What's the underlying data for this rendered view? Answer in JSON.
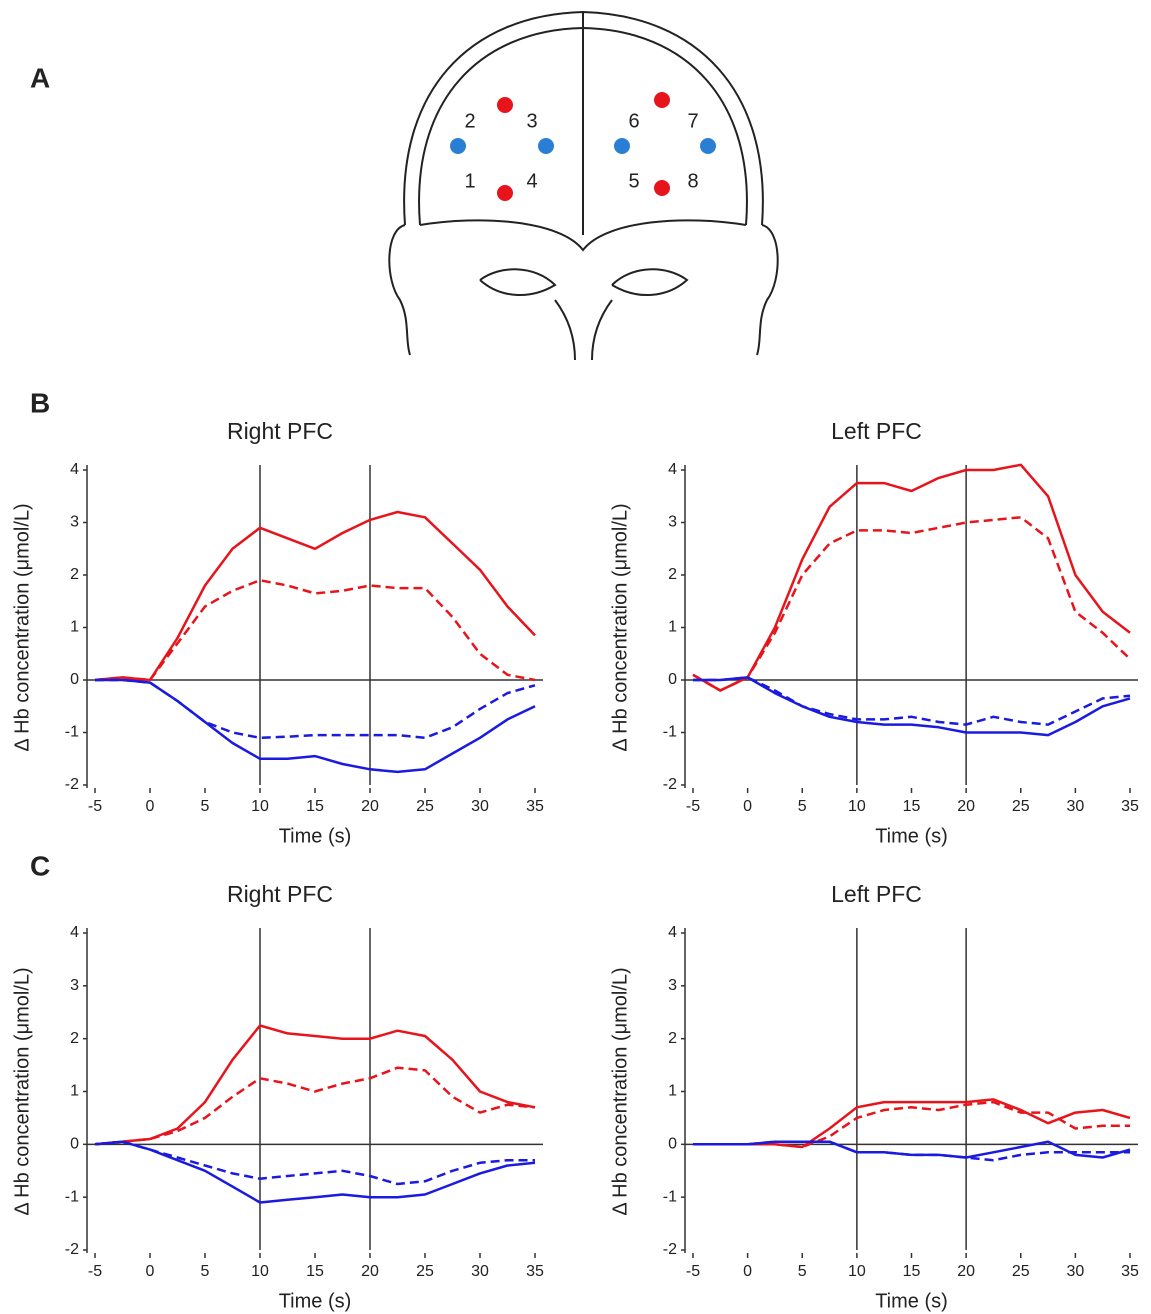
{
  "panels": [
    "A",
    "B",
    "C"
  ],
  "head": {
    "channels": [
      "1",
      "2",
      "3",
      "4",
      "5",
      "6",
      "7",
      "8"
    ]
  },
  "chart_data": [
    {
      "type": "line",
      "title": "Right PFC",
      "xlabel": "Time (s)",
      "ylabel": "Δ Hb concentration (μmol/L)",
      "xlim": [
        -5,
        35
      ],
      "ylim": [
        -2,
        4
      ],
      "xticks": [
        -5,
        0,
        5,
        10,
        15,
        20,
        25,
        30,
        35
      ],
      "yticks": [
        -2,
        -1,
        0,
        1,
        2,
        3,
        4
      ],
      "vlines": [
        10,
        20
      ],
      "hlines": [
        0
      ],
      "x": [
        -5,
        -2.5,
        0,
        2.5,
        5,
        7.5,
        10,
        12.5,
        15,
        17.5,
        20,
        22.5,
        25,
        27.5,
        30,
        32.5,
        35
      ],
      "series": [
        {
          "color": "#e8141b",
          "linestyle": "solid",
          "values": [
            0,
            0.05,
            0,
            0.8,
            1.8,
            2.5,
            2.9,
            2.7,
            2.5,
            2.8,
            3.05,
            3.2,
            3.1,
            2.6,
            2.1,
            1.4,
            0.85
          ]
        },
        {
          "color": "#e8141b",
          "linestyle": "dashed",
          "values": [
            0,
            0.05,
            0,
            0.7,
            1.4,
            1.7,
            1.9,
            1.8,
            1.65,
            1.7,
            1.8,
            1.75,
            1.75,
            1.2,
            0.5,
            0.1,
            0
          ]
        },
        {
          "color": "#1a1ae0",
          "linestyle": "solid",
          "values": [
            0,
            0,
            -0.05,
            -0.4,
            -0.8,
            -1.2,
            -1.5,
            -1.5,
            -1.45,
            -1.6,
            -1.7,
            -1.75,
            -1.7,
            -1.4,
            -1.1,
            -0.75,
            -0.5
          ]
        },
        {
          "color": "#1a1ae0",
          "linestyle": "dashed",
          "values": [
            0,
            0,
            -0.05,
            -0.4,
            -0.8,
            -1,
            -1.1,
            -1.08,
            -1.05,
            -1.05,
            -1.05,
            -1.05,
            -1.1,
            -0.9,
            -0.55,
            -0.25,
            -0.1
          ]
        }
      ]
    },
    {
      "type": "line",
      "title": "Left PFC",
      "xlabel": "Time (s)",
      "ylabel": "Δ Hb concentration (μmol/L)",
      "xlim": [
        -5,
        35
      ],
      "ylim": [
        -2,
        4
      ],
      "xticks": [
        -5,
        0,
        5,
        10,
        15,
        20,
        25,
        30,
        35
      ],
      "yticks": [
        -2,
        -1,
        0,
        1,
        2,
        3,
        4
      ],
      "vlines": [
        10,
        20
      ],
      "hlines": [
        0
      ],
      "x": [
        -5,
        -2.5,
        0,
        2.5,
        5,
        7.5,
        10,
        12.5,
        15,
        17.5,
        20,
        22.5,
        25,
        27.5,
        30,
        32.5,
        35
      ],
      "series": [
        {
          "color": "#e8141b",
          "linestyle": "solid",
          "values": [
            0.1,
            -0.2,
            0.05,
            1,
            2.3,
            3.3,
            3.75,
            3.75,
            3.6,
            3.85,
            4,
            4,
            4.1,
            3.5,
            2,
            1.3,
            0.9
          ]
        },
        {
          "color": "#e8141b",
          "linestyle": "dashed",
          "values": [
            0.1,
            -0.2,
            0.05,
            0.9,
            2,
            2.6,
            2.85,
            2.85,
            2.8,
            2.9,
            3,
            3.05,
            3.1,
            2.7,
            1.3,
            0.9,
            0.4
          ]
        },
        {
          "color": "#1a1ae0",
          "linestyle": "solid",
          "values": [
            0,
            0,
            0.05,
            -0.25,
            -0.5,
            -0.7,
            -0.8,
            -0.85,
            -0.85,
            -0.9,
            -1,
            -1,
            -1,
            -1.05,
            -0.8,
            -0.5,
            -0.35
          ]
        },
        {
          "color": "#1a1ae0",
          "linestyle": "dashed",
          "values": [
            0,
            0,
            0.05,
            -0.2,
            -0.5,
            -0.65,
            -0.75,
            -0.75,
            -0.7,
            -0.8,
            -0.85,
            -0.7,
            -0.8,
            -0.85,
            -0.6,
            -0.35,
            -0.3
          ]
        }
      ]
    },
    {
      "type": "line",
      "title": "Right PFC",
      "xlabel": "Time (s)",
      "ylabel": "Δ Hb concentration (μmol/L)",
      "xlim": [
        -5,
        35
      ],
      "ylim": [
        -2,
        4
      ],
      "xticks": [
        -5,
        0,
        5,
        10,
        15,
        20,
        25,
        30,
        35
      ],
      "yticks": [
        -2,
        -1,
        0,
        1,
        2,
        3,
        4
      ],
      "vlines": [
        10,
        20
      ],
      "hlines": [
        0
      ],
      "x": [
        -5,
        -2.5,
        0,
        2.5,
        5,
        7.5,
        10,
        12.5,
        15,
        17.5,
        20,
        22.5,
        25,
        27.5,
        30,
        32.5,
        35
      ],
      "series": [
        {
          "color": "#e8141b",
          "linestyle": "solid",
          "values": [
            0,
            0.05,
            0.1,
            0.3,
            0.8,
            1.6,
            2.25,
            2.1,
            2.05,
            2,
            2,
            2.15,
            2.05,
            1.6,
            1,
            0.8,
            0.7
          ]
        },
        {
          "color": "#e8141b",
          "linestyle": "dashed",
          "values": [
            0,
            0.05,
            0.1,
            0.25,
            0.5,
            0.9,
            1.25,
            1.15,
            1,
            1.15,
            1.25,
            1.45,
            1.4,
            0.9,
            0.6,
            0.75,
            0.7
          ]
        },
        {
          "color": "#1a1ae0",
          "linestyle": "solid",
          "values": [
            0,
            0.05,
            -0.1,
            -0.3,
            -0.5,
            -0.8,
            -1.1,
            -1.05,
            -1,
            -0.95,
            -1,
            -1,
            -0.95,
            -0.75,
            -0.55,
            -0.4,
            -0.35
          ]
        },
        {
          "color": "#1a1ae0",
          "linestyle": "dashed",
          "values": [
            0,
            0.05,
            -0.1,
            -0.25,
            -0.4,
            -0.55,
            -0.65,
            -0.6,
            -0.55,
            -0.5,
            -0.6,
            -0.75,
            -0.7,
            -0.5,
            -0.35,
            -0.3,
            -0.3
          ]
        }
      ]
    },
    {
      "type": "line",
      "title": "Left PFC",
      "xlabel": "Time (s)",
      "ylabel": "Δ Hb concentration (μmol/L)",
      "xlim": [
        -5,
        35
      ],
      "ylim": [
        -2,
        4
      ],
      "xticks": [
        -5,
        0,
        5,
        10,
        15,
        20,
        25,
        30,
        35
      ],
      "yticks": [
        -2,
        -1,
        0,
        1,
        2,
        3,
        4
      ],
      "vlines": [
        10,
        20
      ],
      "hlines": [
        0
      ],
      "x": [
        -5,
        -2.5,
        0,
        2.5,
        5,
        7.5,
        10,
        12.5,
        15,
        17.5,
        20,
        22.5,
        25,
        27.5,
        30,
        32.5,
        35
      ],
      "series": [
        {
          "color": "#e8141b",
          "linestyle": "solid",
          "values": [
            0,
            0,
            0,
            0,
            -0.05,
            0.3,
            0.7,
            0.8,
            0.8,
            0.8,
            0.8,
            0.85,
            0.65,
            0.4,
            0.6,
            0.65,
            0.5
          ]
        },
        {
          "color": "#e8141b",
          "linestyle": "dashed",
          "values": [
            0,
            0,
            0,
            0,
            -0.05,
            0.15,
            0.5,
            0.65,
            0.7,
            0.65,
            0.75,
            0.8,
            0.6,
            0.6,
            0.3,
            0.35,
            0.35
          ]
        },
        {
          "color": "#1a1ae0",
          "linestyle": "solid",
          "values": [
            0,
            0,
            0,
            0.05,
            0.05,
            0.05,
            -0.15,
            -0.15,
            -0.2,
            -0.2,
            -0.25,
            -0.15,
            -0.05,
            0.05,
            -0.2,
            -0.25,
            -0.1
          ]
        },
        {
          "color": "#1a1ae0",
          "linestyle": "dashed",
          "values": [
            0,
            0,
            0,
            0.05,
            0.05,
            0.05,
            -0.15,
            -0.15,
            -0.2,
            -0.2,
            -0.25,
            -0.3,
            -0.2,
            -0.15,
            -0.15,
            -0.15,
            -0.15
          ]
        }
      ]
    }
  ]
}
